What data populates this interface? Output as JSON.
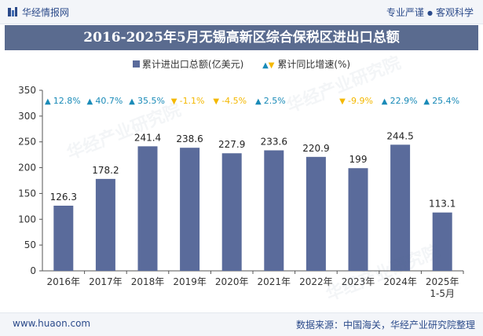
{
  "header": {
    "brand": "华经情报网",
    "slogan_left": "专业严谨",
    "slogan_sep": "●",
    "slogan_right": "客观科学"
  },
  "footer": {
    "url": "www.huaon.com",
    "source": "数据来源：中国海关，华经产业研究院整理"
  },
  "colors": {
    "bar": "#5a6b9b",
    "up": "#1a8bb8",
    "down": "#f4b800",
    "title_band": "#5a6b8f"
  },
  "chart_data": {
    "type": "bar",
    "title": "2016-2025年5月无锡高新区综合保税区进出口总额",
    "categories": [
      "2016年",
      "2017年",
      "2018年",
      "2019年",
      "2020年",
      "2021年",
      "2022年",
      "2023年",
      "2024年",
      "2025年\n1-5月"
    ],
    "series": [
      {
        "name": "累计进出口总额(亿美元)",
        "values": [
          126.3,
          178.2,
          241.4,
          238.6,
          227.9,
          233.6,
          220.9,
          199,
          244.5,
          113.1
        ],
        "labels": [
          "126.3",
          "178.2",
          "241.4",
          "238.6",
          "227.9",
          "233.6",
          "220.9",
          "199",
          "244.5",
          "113.1"
        ]
      },
      {
        "name": "累计同比增速(%)",
        "labels": [
          "12.8%",
          "40.7%",
          "35.5%",
          "-1.1%",
          "-4.5%",
          "2.5%",
          "",
          "-9.9%",
          "22.9%",
          "25.4%"
        ],
        "values": [
          12.8,
          40.7,
          35.5,
          -1.1,
          -4.5,
          2.5,
          null,
          -9.9,
          22.9,
          25.4
        ]
      }
    ],
    "ylim": [
      0,
      350
    ],
    "yticks": [
      "0",
      "50",
      "100",
      "150",
      "200",
      "250",
      "300",
      "350"
    ],
    "xlabel": "",
    "ylabel": "",
    "legend_position": "top",
    "grid": false
  }
}
